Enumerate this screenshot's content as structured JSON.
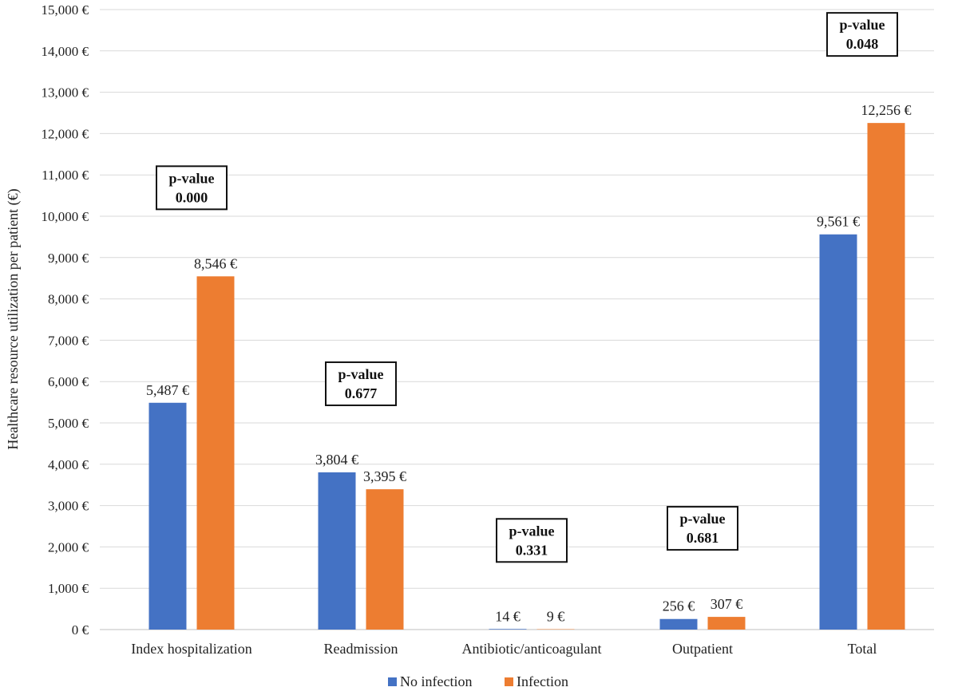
{
  "chart_data": {
    "type": "bar",
    "title": "",
    "xlabel": "",
    "ylabel": "Healthcare resource utilization per patient (€)",
    "ylim": [
      0,
      15000
    ],
    "ytick_step": 1000,
    "ytick_labels": [
      "0 €",
      "1,000 €",
      "2,000 €",
      "3,000 €",
      "4,000 €",
      "5,000 €",
      "6,000 €",
      "7,000 €",
      "8,000 €",
      "9,000 €",
      "10,000 €",
      "11,000 €",
      "12,000 €",
      "13,000 €",
      "14,000 €",
      "15,000 €"
    ],
    "grid": true,
    "categories": [
      "Index hospitalization",
      "Readmission",
      "Antibiotic/anticoagulant",
      "Outpatient",
      "Total"
    ],
    "series": [
      {
        "name": "No infection",
        "color": "#4472c4",
        "values": [
          5487,
          3804,
          14,
          256,
          9561
        ],
        "labels": [
          "5,487 €",
          "3,804 €",
          "14 €",
          "256 €",
          "9,561 €"
        ]
      },
      {
        "name": "Infection",
        "color": "#ed7d31",
        "values": [
          8546,
          3395,
          9,
          307,
          12256
        ],
        "labels": [
          "8,546 €",
          "3,395 €",
          "9 €",
          "307 €",
          "12,256 €"
        ]
      }
    ],
    "p_value_title": "p-value",
    "p_values": [
      "0.000",
      "0.677",
      "0.331",
      "0.681",
      "0.048"
    ],
    "legend_position": "bottom"
  }
}
